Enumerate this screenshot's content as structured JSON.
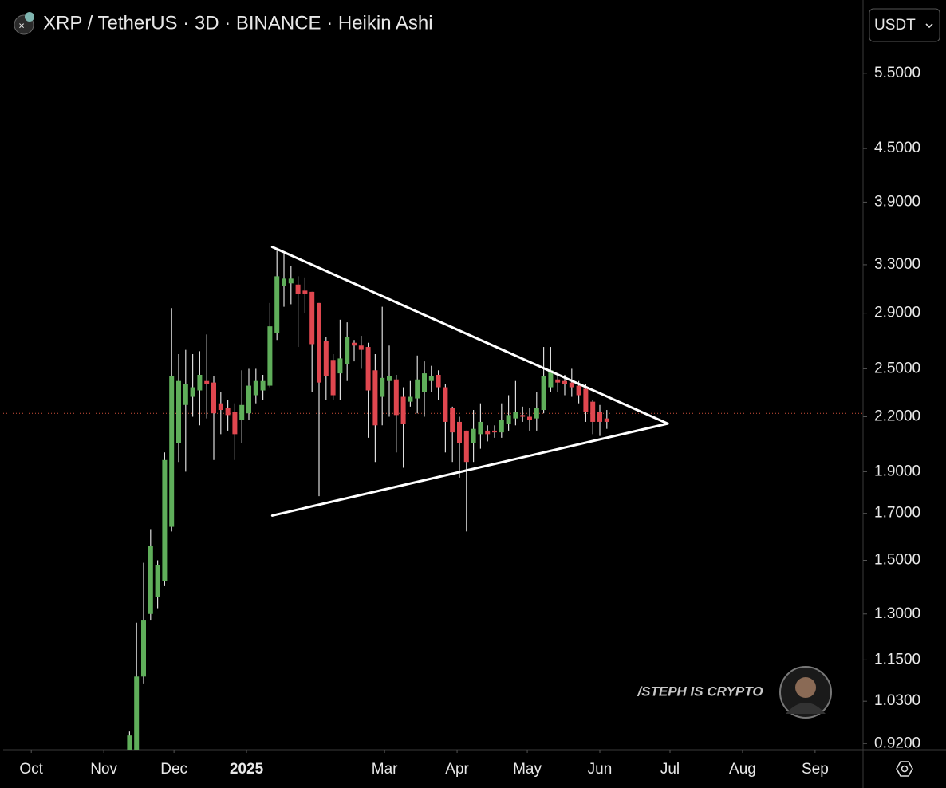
{
  "chart_data": {
    "type": "candlestick",
    "title": "XRP / TetherUS · 3D · BINANCE · Heikin Ashi",
    "currency": "USDT",
    "watermark": "/STEPH IS CRYPTO",
    "log_scale": true,
    "up_color": "#5fae5a",
    "down_color": "#e0474f",
    "wick_color": "#dcdcdc",
    "line_color": "#ffffff",
    "price_line_color": "#d0503a",
    "price_line": 2.22,
    "xlim": [
      -12,
      355.5
    ],
    "xticks": [
      {
        "value": 0,
        "label": "Oct"
      },
      {
        "value": 31,
        "label": "Nov"
      },
      {
        "value": 61,
        "label": "Dec"
      },
      {
        "value": 92,
        "label": "2025"
      },
      {
        "value": 151,
        "label": "Mar"
      },
      {
        "value": 182,
        "label": "Apr"
      },
      {
        "value": 212,
        "label": "May"
      },
      {
        "value": 243,
        "label": "Jun"
      },
      {
        "value": 273,
        "label": "Jul"
      },
      {
        "value": 304,
        "label": "Aug"
      },
      {
        "value": 335,
        "label": "Sep"
      }
    ],
    "ylim": [
      0.905,
      6.63
    ],
    "yticks": [
      {
        "value": 5.5,
        "label": "5.5000"
      },
      {
        "value": 4.5,
        "label": "4.5000"
      },
      {
        "value": 3.9,
        "label": "3.9000"
      },
      {
        "value": 3.3,
        "label": "3.3000"
      },
      {
        "value": 2.9,
        "label": "2.9000"
      },
      {
        "value": 2.5,
        "label": "2.5000"
      },
      {
        "value": 2.2,
        "label": "2.2000"
      },
      {
        "value": 1.9,
        "label": "1.9000"
      },
      {
        "value": 1.7,
        "label": "1.7000"
      },
      {
        "value": 1.5,
        "label": "1.5000"
      },
      {
        "value": 1.3,
        "label": "1.3000"
      },
      {
        "value": 1.15,
        "label": "1.1500"
      },
      {
        "value": 1.03,
        "label": "1.0300"
      },
      {
        "value": 0.92,
        "label": "0.9200"
      }
    ],
    "candles": {
      "x": [
        42,
        45,
        48,
        51,
        54,
        57,
        60,
        63,
        66,
        69,
        72,
        75,
        78,
        81,
        84,
        87,
        90,
        93,
        96,
        99,
        102,
        105,
        108,
        111,
        114,
        117,
        120,
        123,
        126,
        129,
        132,
        135,
        138,
        141,
        144,
        147,
        150,
        153,
        156,
        159,
        162,
        165,
        168,
        171,
        174,
        177,
        180,
        183,
        186,
        189,
        192,
        195,
        198,
        201,
        204,
        207,
        210,
        213,
        216,
        219,
        222,
        225,
        228,
        231,
        234,
        237,
        240,
        243,
        246
      ],
      "open": [
        0.89,
        0.9,
        1.1,
        1.3,
        1.36,
        1.42,
        1.64,
        2.05,
        2.27,
        2.32,
        2.36,
        2.42,
        2.41,
        2.28,
        2.25,
        2.23,
        2.18,
        2.22,
        2.33,
        2.36,
        2.39,
        2.75,
        3.12,
        3.14,
        3.13,
        3.08,
        3.07,
        2.98,
        2.69,
        2.56,
        2.47,
        2.53,
        2.68,
        2.66,
        2.65,
        2.49,
        2.32,
        2.42,
        2.43,
        2.32,
        2.29,
        2.31,
        2.35,
        2.42,
        2.46,
        2.38,
        2.25,
        2.17,
        2.12,
        2.05,
        2.1,
        2.12,
        2.12,
        2.11,
        2.16,
        2.19,
        2.21,
        2.2,
        2.19,
        2.24,
        2.38,
        2.43,
        2.42,
        2.41,
        2.39,
        2.37,
        2.29,
        2.23,
        2.19
      ],
      "high": [
        0.95,
        1.27,
        1.49,
        1.63,
        1.5,
        2.0,
        2.94,
        2.6,
        2.63,
        2.6,
        2.62,
        2.74,
        2.45,
        2.35,
        2.3,
        2.28,
        2.49,
        2.5,
        2.5,
        2.46,
        2.98,
        3.45,
        3.4,
        3.29,
        3.2,
        3.19,
        3.07,
        2.98,
        2.72,
        2.6,
        2.85,
        2.83,
        2.7,
        2.73,
        2.68,
        2.6,
        2.95,
        2.66,
        2.46,
        2.38,
        2.42,
        2.59,
        2.55,
        2.52,
        2.49,
        2.4,
        2.26,
        2.2,
        2.12,
        2.24,
        2.28,
        2.15,
        2.15,
        2.28,
        2.33,
        2.42,
        2.26,
        2.25,
        2.35,
        2.65,
        2.65,
        2.46,
        2.46,
        2.5,
        2.42,
        2.4,
        2.3,
        2.27,
        2.24
      ],
      "low": [
        0.88,
        0.89,
        1.08,
        1.28,
        1.32,
        1.4,
        1.62,
        1.95,
        1.9,
        2.2,
        2.15,
        2.19,
        1.96,
        2.1,
        2.12,
        1.96,
        2.05,
        2.18,
        2.28,
        2.3,
        2.38,
        2.7,
        2.95,
        2.97,
        2.65,
        2.9,
        2.35,
        1.78,
        2.3,
        2.3,
        2.3,
        2.42,
        2.55,
        2.5,
        2.08,
        1.95,
        2.15,
        2.2,
        2.0,
        1.92,
        2.26,
        2.22,
        2.2,
        2.35,
        2.3,
        2.0,
        1.95,
        1.87,
        1.62,
        1.95,
        2.02,
        2.06,
        2.08,
        2.08,
        2.12,
        2.15,
        2.17,
        2.12,
        2.12,
        2.22,
        2.35,
        2.35,
        2.33,
        2.32,
        2.28,
        2.17,
        2.1,
        2.09,
        2.13
      ],
      "close": [
        0.94,
        1.1,
        1.28,
        1.56,
        1.48,
        1.96,
        2.45,
        2.42,
        2.4,
        2.38,
        2.46,
        2.4,
        2.22,
        2.24,
        2.21,
        2.1,
        2.27,
        2.39,
        2.42,
        2.42,
        2.8,
        3.2,
        3.18,
        3.18,
        3.05,
        3.05,
        2.67,
        2.41,
        2.45,
        2.33,
        2.57,
        2.72,
        2.66,
        2.63,
        2.36,
        2.15,
        2.44,
        2.45,
        2.21,
        2.16,
        2.32,
        2.43,
        2.47,
        2.45,
        2.38,
        2.17,
        2.11,
        2.05,
        1.95,
        2.13,
        2.17,
        2.1,
        2.11,
        2.18,
        2.21,
        2.23,
        2.2,
        2.18,
        2.25,
        2.45,
        2.49,
        2.41,
        2.4,
        2.38,
        2.33,
        2.23,
        2.17,
        2.17,
        2.17
      ]
    },
    "trendlines": [
      {
        "x": [
          103,
          272
        ],
        "y": [
          3.46,
          2.16
        ]
      },
      {
        "x": [
          103,
          272
        ],
        "y": [
          1.69,
          2.16
        ]
      }
    ]
  }
}
